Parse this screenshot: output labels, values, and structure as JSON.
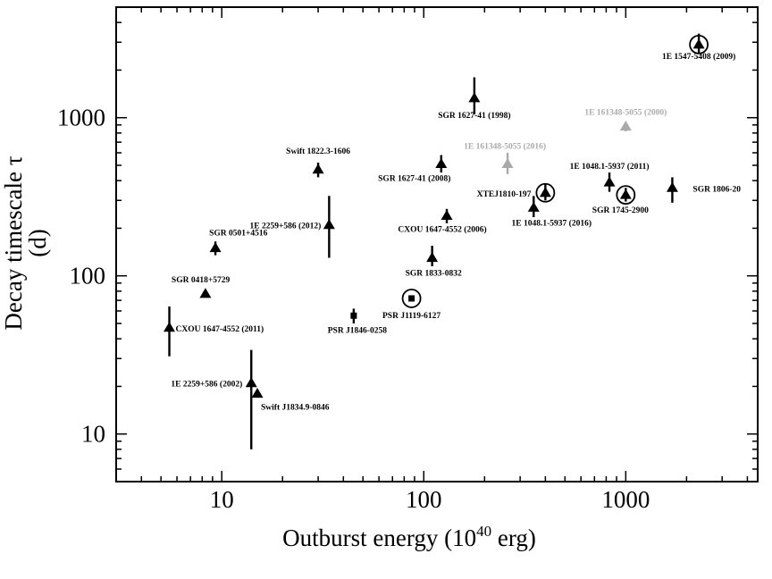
{
  "chart_data": {
    "type": "scatter",
    "title": "",
    "xlabel_main": "Outburst energy (10",
    "xlabel_sup": "40",
    "xlabel_end": " erg)",
    "ylabel_line1": "Decay timescale τ",
    "ylabel_line2": "(d)",
    "xscale": "log",
    "yscale": "log",
    "xlim": [
      3,
      4500
    ],
    "ylim": [
      5,
      5000
    ],
    "xticks": [
      {
        "value": 10,
        "label": "10"
      },
      {
        "value": 100,
        "label": "100"
      },
      {
        "value": 1000,
        "label": "1000"
      }
    ],
    "yticks": [
      {
        "value": 10,
        "label": "10"
      },
      {
        "value": 100,
        "label": "100"
      },
      {
        "value": 1000,
        "label": "1000"
      }
    ],
    "points": [
      {
        "label": "1E 1547-5408 (2009)",
        "x": 2300,
        "y": 2900,
        "err_lo": 2550,
        "err_hi": 3400,
        "marker": "triangle",
        "circled": true,
        "color": "#000000"
      },
      {
        "label": "SGR 1627-41 (1998)",
        "x": 178,
        "y": 1330,
        "err_lo": 1050,
        "err_hi": 1800,
        "marker": "triangle",
        "circled": false,
        "color": "#000000"
      },
      {
        "label": "1E 161348-5055 (2000)",
        "x": 1000,
        "y": 880,
        "err_lo": 820,
        "err_hi": 940,
        "marker": "triangle",
        "circled": false,
        "color": "#aaaaaa"
      },
      {
        "label": "1E 161348-5055 (2016)",
        "x": 260,
        "y": 510,
        "err_lo": 440,
        "err_hi": 600,
        "marker": "triangle",
        "circled": false,
        "color": "#aaaaaa"
      },
      {
        "label": "SGR 1627-41 (2008)",
        "x": 122,
        "y": 510,
        "err_lo": 450,
        "err_hi": 580,
        "marker": "triangle",
        "circled": false,
        "color": "#000000"
      },
      {
        "label": "Swift 1822.3-1606",
        "x": 30,
        "y": 470,
        "err_lo": 420,
        "err_hi": 520,
        "marker": "triangle",
        "circled": false,
        "color": "#000000"
      },
      {
        "label": "1E 1048.1-5937 (2011)",
        "x": 830,
        "y": 390,
        "err_lo": 340,
        "err_hi": 450,
        "marker": "triangle",
        "circled": false,
        "color": "#000000"
      },
      {
        "label": "SGR 1806-20",
        "x": 1700,
        "y": 360,
        "err_lo": 290,
        "err_hi": 420,
        "marker": "triangle",
        "circled": false,
        "color": "#000000"
      },
      {
        "label": "XTEJ1810-197",
        "x": 400,
        "y": 335,
        "err_lo": 300,
        "err_hi": 380,
        "marker": "triangle",
        "circled": true,
        "color": "#000000"
      },
      {
        "label": "SGR 1745-2900",
        "x": 1000,
        "y": 325,
        "err_lo": 295,
        "err_hi": 360,
        "marker": "triangle",
        "circled": true,
        "color": "#000000"
      },
      {
        "label": "1E 1048.1-5937 (2016)",
        "x": 350,
        "y": 270,
        "err_lo": 235,
        "err_hi": 320,
        "marker": "triangle",
        "circled": false,
        "color": "#000000"
      },
      {
        "label": "CXOU 1647-4552 (2006)",
        "x": 130,
        "y": 240,
        "err_lo": 215,
        "err_hi": 265,
        "marker": "triangle",
        "circled": false,
        "color": "#000000"
      },
      {
        "label": "1E 2259+586 (2012)",
        "x": 34,
        "y": 210,
        "err_lo": 130,
        "err_hi": 320,
        "marker": "triangle",
        "circled": false,
        "color": "#000000"
      },
      {
        "label": "SGR 0501+4516",
        "x": 9.3,
        "y": 150,
        "err_lo": 135,
        "err_hi": 165,
        "marker": "triangle",
        "circled": false,
        "color": "#000000"
      },
      {
        "label": "SGR 1833-0832",
        "x": 110,
        "y": 130,
        "err_lo": 115,
        "err_hi": 155,
        "marker": "triangle",
        "circled": false,
        "color": "#000000"
      },
      {
        "label": "SGR 0418+5729",
        "x": 8.3,
        "y": 77,
        "err_lo": 73,
        "err_hi": 81,
        "marker": "triangle",
        "circled": false,
        "color": "#000000"
      },
      {
        "label": "PSR J1119-6127",
        "x": 87,
        "y": 72,
        "err_lo": 69,
        "err_hi": 75,
        "marker": "square",
        "circled": true,
        "color": "#000000"
      },
      {
        "label": "PSR J1846-0258",
        "x": 45,
        "y": 56,
        "err_lo": 50,
        "err_hi": 62,
        "marker": "square",
        "circled": false,
        "color": "#000000"
      },
      {
        "label": "CXOU 1647-4552 (2011)",
        "x": 5.5,
        "y": 47,
        "err_lo": 31,
        "err_hi": 64,
        "marker": "triangle",
        "circled": false,
        "color": "#000000"
      },
      {
        "label": "1E 2259+586 (2002)",
        "x": 14,
        "y": 21,
        "err_lo": 8,
        "err_hi": 34,
        "marker": "triangle",
        "circled": false,
        "color": "#000000"
      },
      {
        "label": "Swift J1834.9-0846",
        "x": 15,
        "y": 18,
        "err_lo": 17,
        "err_hi": 19,
        "marker": "triangle",
        "circled": false,
        "color": "#000000"
      }
    ]
  }
}
